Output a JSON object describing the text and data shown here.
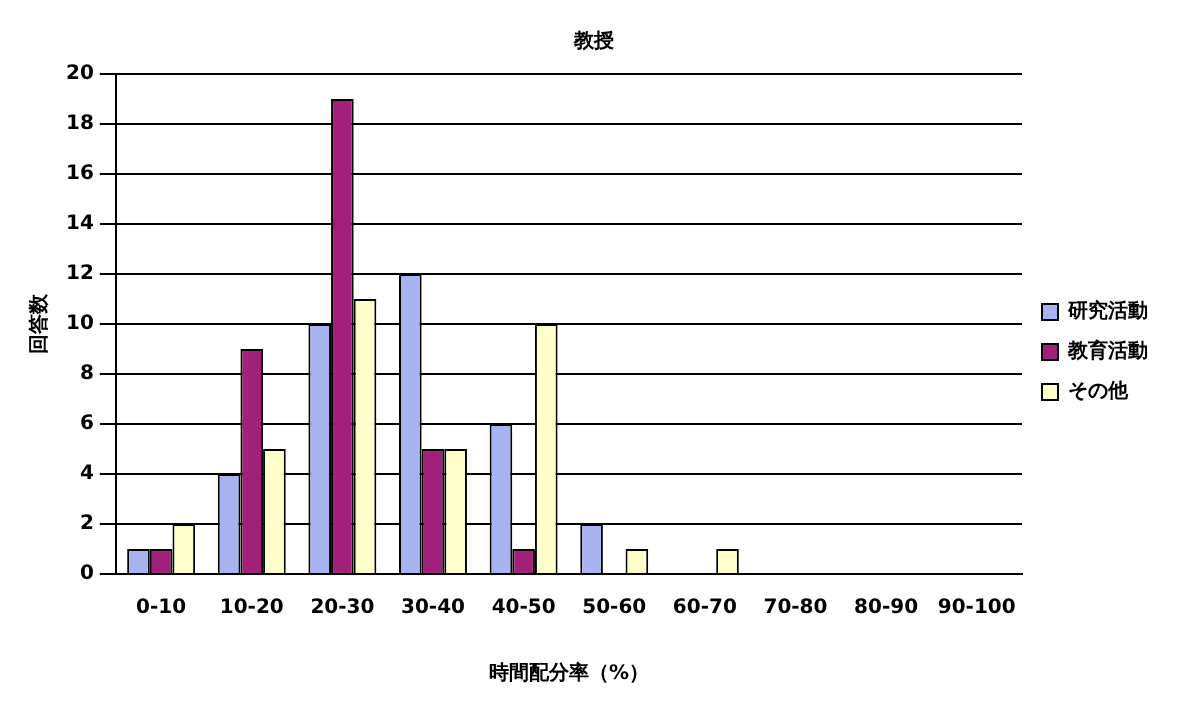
{
  "chart_data": {
    "type": "bar",
    "title": "教授",
    "xlabel": "時間配分率（%）",
    "ylabel": "回答数",
    "categories": [
      "0-10",
      "10-20",
      "20-30",
      "30-40",
      "40-50",
      "50-60",
      "60-70",
      "70-80",
      "80-90",
      "90-100"
    ],
    "series": [
      {
        "name": "研究活動",
        "color": "#a8b4f0",
        "values": [
          1,
          4,
          10,
          12,
          6,
          2,
          0,
          0,
          0,
          0
        ]
      },
      {
        "name": "教育活動",
        "color": "#a0207a",
        "values": [
          1,
          9,
          19,
          5,
          1,
          0,
          0,
          0,
          0,
          0
        ]
      },
      {
        "name": "その他",
        "color": "#ffffcc",
        "values": [
          2,
          5,
          11,
          5,
          10,
          1,
          1,
          0,
          0,
          0
        ]
      }
    ],
    "ylim": [
      0,
      20
    ],
    "yticks": [
      0,
      2,
      4,
      6,
      8,
      10,
      12,
      14,
      16,
      18,
      20
    ],
    "grid": "y",
    "legend": "right"
  }
}
